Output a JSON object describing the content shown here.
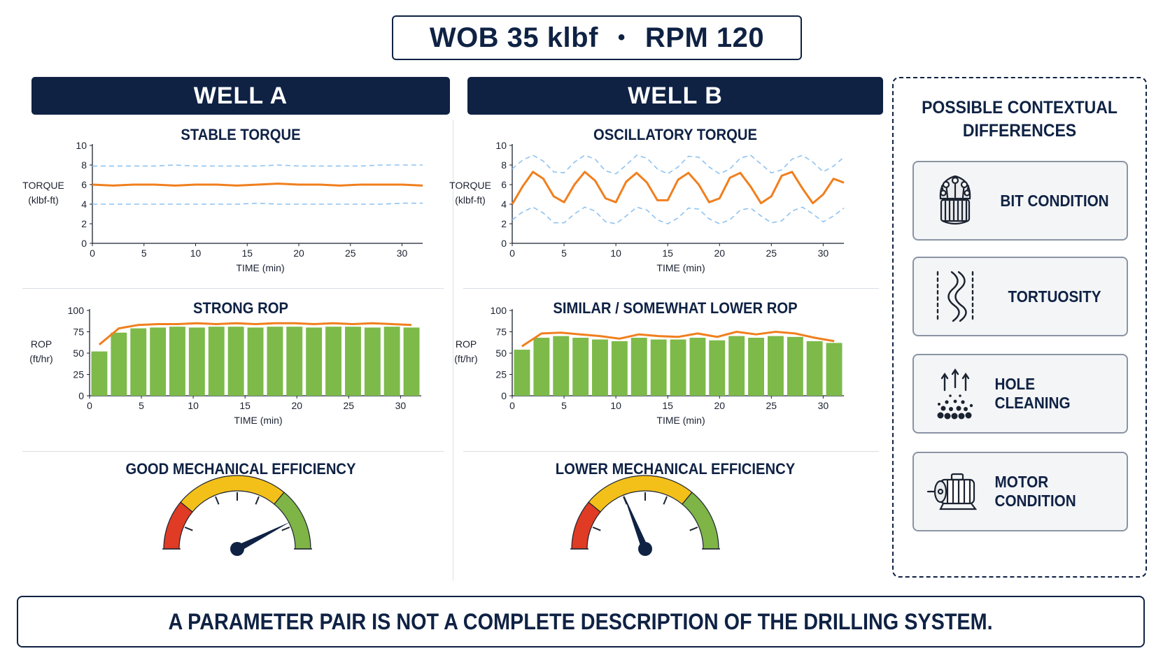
{
  "header": {
    "wob": "WOB 35 klbf",
    "separator": "•",
    "rpm": "RPM 120"
  },
  "wells": [
    {
      "name": "WELL A",
      "torque_title": "STABLE TORQUE",
      "rop_title": "STRONG ROP",
      "efficiency_title": "GOOD MECHANICAL EFFICIENCY"
    },
    {
      "name": "WELL B",
      "torque_title": "OSCILLATORY TORQUE",
      "rop_title": "SIMILAR / SOMEWHAT LOWER ROP",
      "efficiency_title": "LOWER MECHANICAL EFFICIENCY"
    }
  ],
  "colors": {
    "navy": "#0f2244",
    "torque_line": "#f07f1e",
    "envelope": "#8fc3f0",
    "rop_bar": "#7dba4a",
    "rop_line": "#f07f1e",
    "gauge_red": "#e03b24",
    "gauge_yellow": "#f3c01a",
    "gauge_green": "#7fb446"
  },
  "chart_data": [
    {
      "id": "well-a-torque",
      "type": "line",
      "title": "STABLE TORQUE",
      "xlabel": "TIME (min)",
      "ylabel": [
        "TORQUE",
        "(klbf-ft)"
      ],
      "xlim": [
        0,
        32
      ],
      "ylim": [
        0,
        10
      ],
      "xticks": [
        0,
        5,
        10,
        15,
        20,
        25,
        30
      ],
      "yticks": [
        0,
        2,
        4,
        6,
        8,
        10
      ],
      "grid": false,
      "x": [
        0,
        2,
        4,
        6,
        8,
        10,
        12,
        14,
        16,
        18,
        20,
        22,
        24,
        26,
        28,
        30,
        32
      ],
      "series": [
        {
          "role": "measured",
          "values": [
            6.0,
            5.9,
            6.0,
            6.0,
            5.9,
            6.0,
            6.0,
            5.9,
            6.0,
            6.1,
            6.0,
            6.0,
            5.9,
            6.0,
            6.0,
            6.0,
            5.9
          ]
        },
        {
          "role": "upper envelope",
          "style": "dashed",
          "values": [
            7.9,
            7.9,
            7.9,
            7.9,
            8.0,
            7.9,
            7.9,
            7.9,
            7.9,
            8.0,
            7.9,
            7.9,
            7.9,
            7.9,
            8.0,
            8.0,
            8.0
          ]
        },
        {
          "role": "lower envelope",
          "style": "dashed",
          "values": [
            4.0,
            4.0,
            4.0,
            4.0,
            4.0,
            4.0,
            4.0,
            4.0,
            4.1,
            4.0,
            4.0,
            4.0,
            4.0,
            4.0,
            4.0,
            4.1,
            4.1
          ]
        }
      ]
    },
    {
      "id": "well-a-rop",
      "type": "bar",
      "title": "STRONG ROP",
      "xlabel": "TIME (min)",
      "ylabel": [
        "ROP",
        "(ft/hr)"
      ],
      "xlim": [
        0,
        32
      ],
      "ylim": [
        0,
        100
      ],
      "xticks": [
        0,
        5,
        10,
        15,
        20,
        25,
        30
      ],
      "yticks": [
        0,
        25,
        50,
        75,
        100
      ],
      "grid": false,
      "x": [
        0,
        2,
        4,
        6,
        8,
        10,
        12,
        14,
        16,
        18,
        20,
        22,
        24,
        26,
        28,
        30,
        32
      ],
      "values": [
        52,
        74,
        79,
        80,
        81,
        80,
        81,
        81,
        80,
        81,
        81,
        80,
        81,
        81,
        80,
        81,
        80
      ],
      "overlay_line": [
        60,
        79,
        83,
        84,
        84,
        85,
        84,
        85,
        84,
        85,
        85,
        84,
        85,
        84,
        85,
        84,
        83
      ]
    },
    {
      "id": "well-a-efficiency",
      "type": "gauge",
      "title": "GOOD MECHANICAL EFFICIENCY",
      "range": [
        0,
        100
      ],
      "value": 85
    },
    {
      "id": "well-b-torque",
      "type": "line",
      "title": "OSCILLATORY TORQUE",
      "xlabel": "TIME (min)",
      "ylabel": [
        "TORQUE",
        "(klbf-ft)"
      ],
      "xlim": [
        0,
        32
      ],
      "ylim": [
        0,
        10
      ],
      "xticks": [
        0,
        5,
        10,
        15,
        20,
        25,
        30
      ],
      "yticks": [
        0,
        2,
        4,
        6,
        8,
        10
      ],
      "grid": false,
      "x": [
        0,
        1,
        2,
        3,
        4,
        5,
        6,
        7,
        8,
        9,
        10,
        11,
        12,
        13,
        14,
        15,
        16,
        17,
        18,
        19,
        20,
        21,
        22,
        23,
        24,
        25,
        26,
        27,
        28,
        29,
        30,
        31,
        32
      ],
      "series": [
        {
          "role": "measured",
          "values": [
            4.0,
            5.8,
            7.3,
            6.6,
            4.8,
            4.2,
            6.0,
            7.3,
            6.4,
            4.6,
            4.2,
            6.3,
            7.2,
            6.2,
            4.4,
            4.4,
            6.5,
            7.2,
            6.0,
            4.2,
            4.6,
            6.7,
            7.2,
            5.8,
            4.1,
            4.8,
            6.9,
            7.3,
            5.6,
            4.1,
            5.0,
            6.6,
            6.2
          ]
        },
        {
          "role": "upper envelope",
          "style": "dashed",
          "values": [
            7.6,
            8.5,
            9.0,
            8.4,
            7.3,
            7.2,
            8.3,
            9.0,
            8.6,
            7.4,
            7.1,
            8.0,
            9.0,
            8.7,
            7.6,
            7.1,
            7.8,
            8.9,
            8.8,
            7.8,
            7.1,
            7.6,
            8.7,
            9.0,
            8.1,
            7.2,
            7.5,
            8.6,
            9.0,
            8.3,
            7.3,
            7.9,
            8.8
          ]
        },
        {
          "role": "lower envelope",
          "style": "dashed",
          "values": [
            2.4,
            3.2,
            3.7,
            3.1,
            2.1,
            2.1,
            3.0,
            3.7,
            3.3,
            2.2,
            2.0,
            2.8,
            3.7,
            3.4,
            2.4,
            2.0,
            2.6,
            3.6,
            3.5,
            2.5,
            2.0,
            2.4,
            3.4,
            3.6,
            2.8,
            2.1,
            2.3,
            3.3,
            3.7,
            3.0,
            2.2,
            2.8,
            3.6
          ]
        }
      ]
    },
    {
      "id": "well-b-rop",
      "type": "bar",
      "title": "SIMILAR / SOMEWHAT LOWER ROP",
      "xlabel": "TIME (min)",
      "ylabel": [
        "ROP",
        "(ft/hr)"
      ],
      "xlim": [
        0,
        32
      ],
      "ylim": [
        0,
        100
      ],
      "xticks": [
        0,
        5,
        10,
        15,
        20,
        25,
        30
      ],
      "yticks": [
        0,
        25,
        50,
        75,
        100
      ],
      "grid": false,
      "x": [
        0,
        2,
        4,
        6,
        8,
        10,
        12,
        14,
        16,
        18,
        20,
        22,
        24,
        26,
        28,
        30,
        32
      ],
      "values": [
        54,
        68,
        70,
        68,
        66,
        64,
        68,
        66,
        66,
        68,
        65,
        70,
        68,
        70,
        69,
        64,
        62
      ],
      "overlay_line": [
        58,
        73,
        74,
        72,
        70,
        67,
        72,
        70,
        69,
        73,
        69,
        75,
        72,
        75,
        73,
        68,
        64
      ]
    },
    {
      "id": "well-b-efficiency",
      "type": "gauge",
      "title": "LOWER MECHANICAL EFFICIENCY",
      "range": [
        0,
        100
      ],
      "value": 38
    }
  ],
  "side_panel": {
    "title_line1": "POSSIBLE CONTEXTUAL",
    "title_line2": "DIFFERENCES",
    "items": [
      {
        "label": "BIT CONDITION",
        "icon": "drill-bit-icon"
      },
      {
        "label": "TORTUOSITY",
        "icon": "wavy-wellbore-icon"
      },
      {
        "label": "HOLE CLEANING",
        "icon": "cuttings-transport-icon"
      },
      {
        "label": "MOTOR CONDITION",
        "icon": "electric-motor-icon"
      }
    ]
  },
  "footer": {
    "text": "A PARAMETER PAIR IS NOT A COMPLETE DESCRIPTION OF THE DRILLING SYSTEM."
  }
}
